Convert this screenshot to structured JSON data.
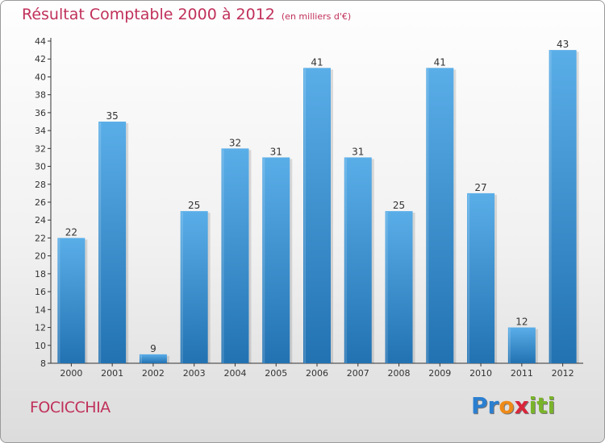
{
  "title": "Résultat Comptable 2000 à 2012",
  "subtitle": "(en milliers d'€)",
  "commune": "FOCICCHIA",
  "logo": {
    "letters": [
      {
        "char": "P",
        "color": "#2b7fd0"
      },
      {
        "char": "r",
        "color": "#2b7fd0"
      },
      {
        "char": "o",
        "color": "#ef8a17"
      },
      {
        "char": "x",
        "color": "#d9263b"
      },
      {
        "char": "i",
        "color": "#7ab42a"
      },
      {
        "char": "t",
        "color": "#7ab42a"
      },
      {
        "char": "i",
        "color": "#7ab42a"
      }
    ]
  },
  "colors": {
    "bar_top": "#5aaee8",
    "bar_bottom": "#2272b2",
    "title": "#c0305a",
    "axis": "#333333"
  },
  "chart_data": {
    "type": "bar",
    "title": "Résultat Comptable 2000 à 2012",
    "subtitle": "(en milliers d'€)",
    "xlabel": "",
    "ylabel": "",
    "categories": [
      "2000",
      "2001",
      "2002",
      "2003",
      "2004",
      "2005",
      "2006",
      "2007",
      "2008",
      "2009",
      "2010",
      "2011",
      "2012"
    ],
    "values": [
      22,
      35,
      9,
      25,
      32,
      31,
      41,
      31,
      25,
      41,
      27,
      12,
      43
    ],
    "ylim": [
      8,
      44
    ],
    "yticks": [
      8,
      10,
      12,
      14,
      16,
      18,
      20,
      22,
      24,
      26,
      28,
      30,
      32,
      34,
      36,
      38,
      40,
      42,
      44
    ],
    "grid": false,
    "legend": "none"
  }
}
